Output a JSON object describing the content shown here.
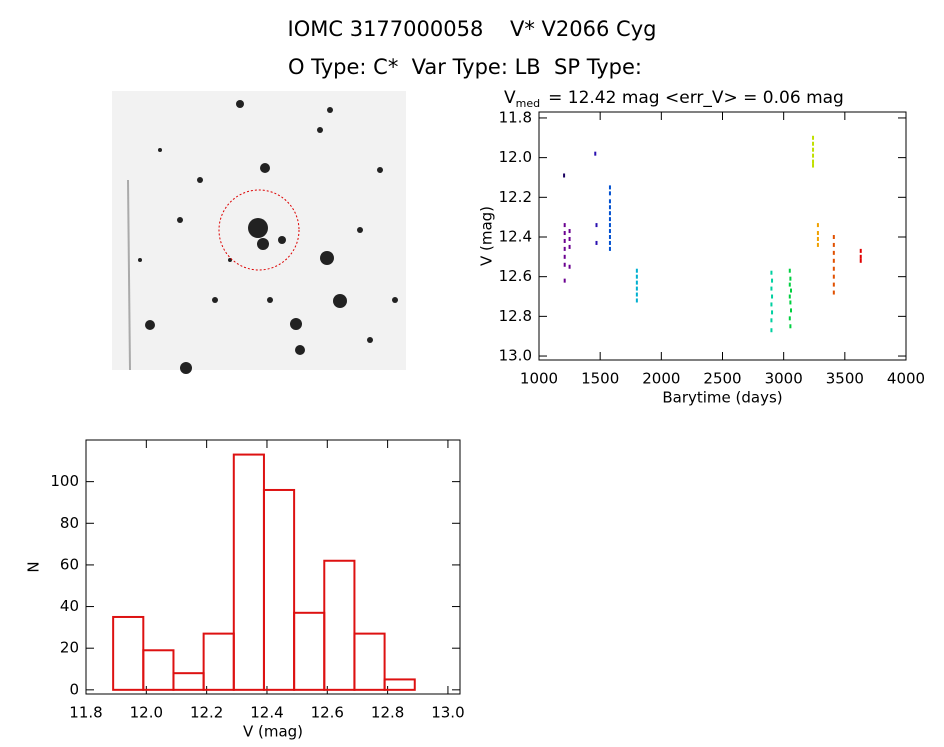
{
  "header": {
    "title": "IOMC 3177000058    V* V2066 Cyg",
    "subtitle": "O Type: C*  Var Type: LB  SP Type:"
  },
  "chart_data": [
    {
      "type": "scatter",
      "title_main": "V",
      "title_sub": "med",
      "title_rest": "= 12.42 mag <err_V> = 0.06 mag",
      "x_label": "Barytime (days)",
      "y_label": "V (mag)",
      "xlim": [
        1000,
        4000
      ],
      "xticks": [
        1000,
        1500,
        2000,
        2500,
        3000,
        3500,
        4000
      ],
      "ylim": [
        13.02,
        11.77
      ],
      "yticks": [
        11.8,
        {
          "value": 12,
          "label": "12.0"
        },
        12.2,
        12.4,
        12.6,
        12.8,
        {
          "value": 13,
          "label": "13.0"
        }
      ],
      "series": [
        {
          "color": "#1a0060",
          "x": [
            1205
          ],
          "values": [
            12.09
          ]
        },
        {
          "color": "#6a0090",
          "x": [
            1210,
            1210,
            1210,
            1210,
            1210,
            1210,
            1250,
            1250,
            1250,
            1250,
            1210
          ],
          "values": [
            12.34,
            12.38,
            12.42,
            12.46,
            12.5,
            12.54,
            12.37,
            12.41,
            12.45,
            12.55,
            12.62
          ]
        },
        {
          "color": "#2a10b0",
          "x": [
            1460,
            1470,
            1470
          ],
          "values": [
            11.98,
            12.34,
            12.43
          ]
        },
        {
          "color": "#0050d0",
          "x": [
            1580,
            1580,
            1580,
            1580,
            1580,
            1580,
            1580,
            1580,
            1580,
            1580,
            1580
          ],
          "values": [
            12.15,
            12.18,
            12.22,
            12.25,
            12.28,
            12.31,
            12.34,
            12.37,
            12.4,
            12.43,
            12.46
          ]
        },
        {
          "color": "#00b0d0",
          "x": [
            1800,
            1800,
            1800,
            1800,
            1800,
            1800
          ],
          "values": [
            12.57,
            12.6,
            12.63,
            12.66,
            12.69,
            12.72
          ]
        },
        {
          "color": "#00d0a0",
          "x": [
            2900,
            2905,
            2900,
            2905,
            2900,
            2905,
            2900,
            2900
          ],
          "values": [
            12.58,
            12.62,
            12.66,
            12.7,
            12.74,
            12.78,
            12.82,
            12.87
          ]
        },
        {
          "color": "#00d040",
          "x": [
            3050,
            3055,
            3050,
            3060,
            3050,
            3055,
            3060,
            3050,
            3055
          ],
          "values": [
            12.57,
            12.61,
            12.64,
            12.67,
            12.7,
            12.73,
            12.77,
            12.81,
            12.85
          ]
        },
        {
          "color": "#c0e000",
          "x": [
            3240,
            3240,
            3240,
            3240,
            3240,
            3240
          ],
          "values": [
            11.9,
            11.93,
            11.96,
            11.99,
            12.02,
            12.04
          ]
        },
        {
          "color": "#f0a000",
          "x": [
            3280,
            3280,
            3280,
            3280
          ],
          "values": [
            12.34,
            12.38,
            12.41,
            12.44
          ]
        },
        {
          "color": "#e05000",
          "x": [
            3410,
            3410,
            3410,
            3410,
            3410,
            3410,
            3410,
            3410
          ],
          "values": [
            12.4,
            12.44,
            12.48,
            12.52,
            12.56,
            12.6,
            12.64,
            12.68
          ]
        },
        {
          "color": "#e00000",
          "x": [
            3630,
            3630,
            3630
          ],
          "values": [
            12.47,
            12.5,
            12.52
          ]
        }
      ]
    },
    {
      "type": "histogram",
      "x_label": "V (mag)",
      "y_label": "N",
      "color": "#dd1111",
      "bins": [
        11.89,
        11.99,
        12.09,
        12.19,
        12.29,
        12.39,
        12.49,
        12.59,
        12.69,
        12.79,
        12.89
      ],
      "values": [
        35,
        19,
        8,
        27,
        113,
        96,
        37,
        62,
        27,
        5
      ],
      "xlim": [
        11.8,
        13.04
      ],
      "xticks": [
        11.8,
        {
          "value": 12,
          "label": "12.0"
        },
        12.2,
        12.4,
        12.6,
        12.8,
        {
          "value": 13,
          "label": "13.0"
        }
      ],
      "ylim": [
        -2,
        120
      ],
      "yticks": [
        0,
        20,
        40,
        60,
        80,
        100
      ]
    }
  ]
}
